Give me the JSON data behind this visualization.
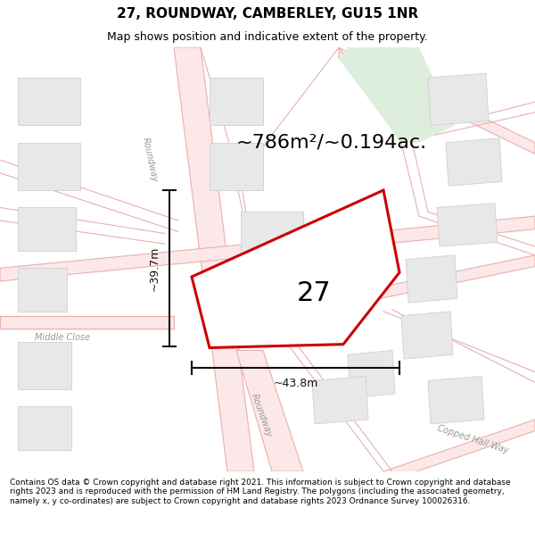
{
  "title": "27, ROUNDWAY, CAMBERLEY, GU15 1NR",
  "subtitle": "Map shows position and indicative extent of the property.",
  "footer": "Contains OS data © Crown copyright and database right 2021. This information is subject to Crown copyright and database rights 2023 and is reproduced with the permission of HM Land Registry. The polygons (including the associated geometry, namely x, y co-ordinates) are subject to Crown copyright and database rights 2023 Ordnance Survey 100026316.",
  "area_label": "~786m²/~0.194ac.",
  "house_number": "27",
  "width_label": "~43.8m",
  "height_label": "~39.7m",
  "bg_color": "#ffffff",
  "map_bg": "#ffffff",
  "property_fill": "#ffffff",
  "property_edge": "#cc0000",
  "green_fill": "#ddeedd",
  "road_fill": "#fce8e8",
  "road_line": "#e8b0b0",
  "block_fill": "#e8e8e8",
  "block_stroke": "#d0d0d0",
  "dim_color": "#111111",
  "label_color": "#999999",
  "title_fontsize": 11,
  "subtitle_fontsize": 9,
  "area_fontsize": 16,
  "house_fontsize": 22,
  "dim_fontsize": 9,
  "road_label_fontsize": 7,
  "footer_fontsize": 6.5
}
